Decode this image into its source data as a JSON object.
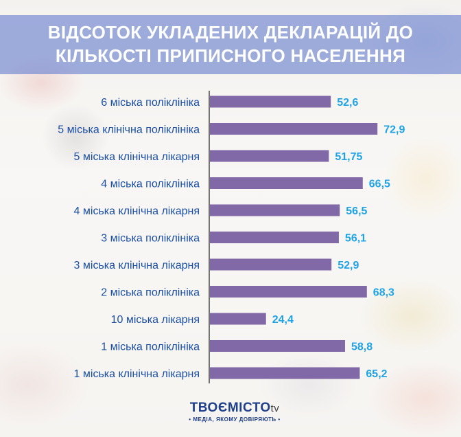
{
  "title": {
    "line1": "ВІДСОТОК УКЛАДЕНИХ ДЕКЛАРАЦІЙ ДО",
    "line2": "КІЛЬКОСТІ ПРИПИСНОГО НАСЕЛЕННЯ"
  },
  "colors": {
    "bar": "#8168a6",
    "category_text": "#1a4fa3",
    "value_text": "#1ea3e6",
    "title_band": "#788cd2"
  },
  "chart_data": {
    "type": "bar",
    "orientation": "horizontal",
    "title": "ВІДСОТОК УКЛАДЕНИХ ДЕКЛАРАЦІЙ ДО КІЛЬКОСТІ ПРИПИСНОГО НАСЕЛЕННЯ",
    "categories": [
      "6 міська поліклініка",
      "5 міська клінічна поліклініка",
      "5 міська клінічна лікарня",
      "4 міська поліклініка",
      "4 міська клінічна лікарня",
      "3 міська поліклініка",
      "3 міська клінічна лікарня",
      "2 міська поліклініка",
      "10 міська лікарня",
      "1 міська поліклініка",
      "1 міська клінічна лікарня"
    ],
    "values": [
      52.6,
      72.9,
      51.75,
      66.5,
      56.5,
      56.1,
      52.9,
      68.3,
      24.4,
      58.8,
      65.2
    ],
    "value_labels": [
      "52,6",
      "72,9",
      "51,75",
      "66,5",
      "56,5",
      "56,1",
      "52,9",
      "68,3",
      "24,4",
      "58,8",
      "65,2"
    ],
    "xlim": [
      0,
      100
    ],
    "grid": false,
    "legend": "none"
  },
  "logo": {
    "name_part1": "ТВОЄ",
    "name_part2": "МІСТО",
    "name_part3": "tv",
    "tagline": "• МЕДІА, ЯКОМУ ДОВІРЯЮТЬ •"
  }
}
